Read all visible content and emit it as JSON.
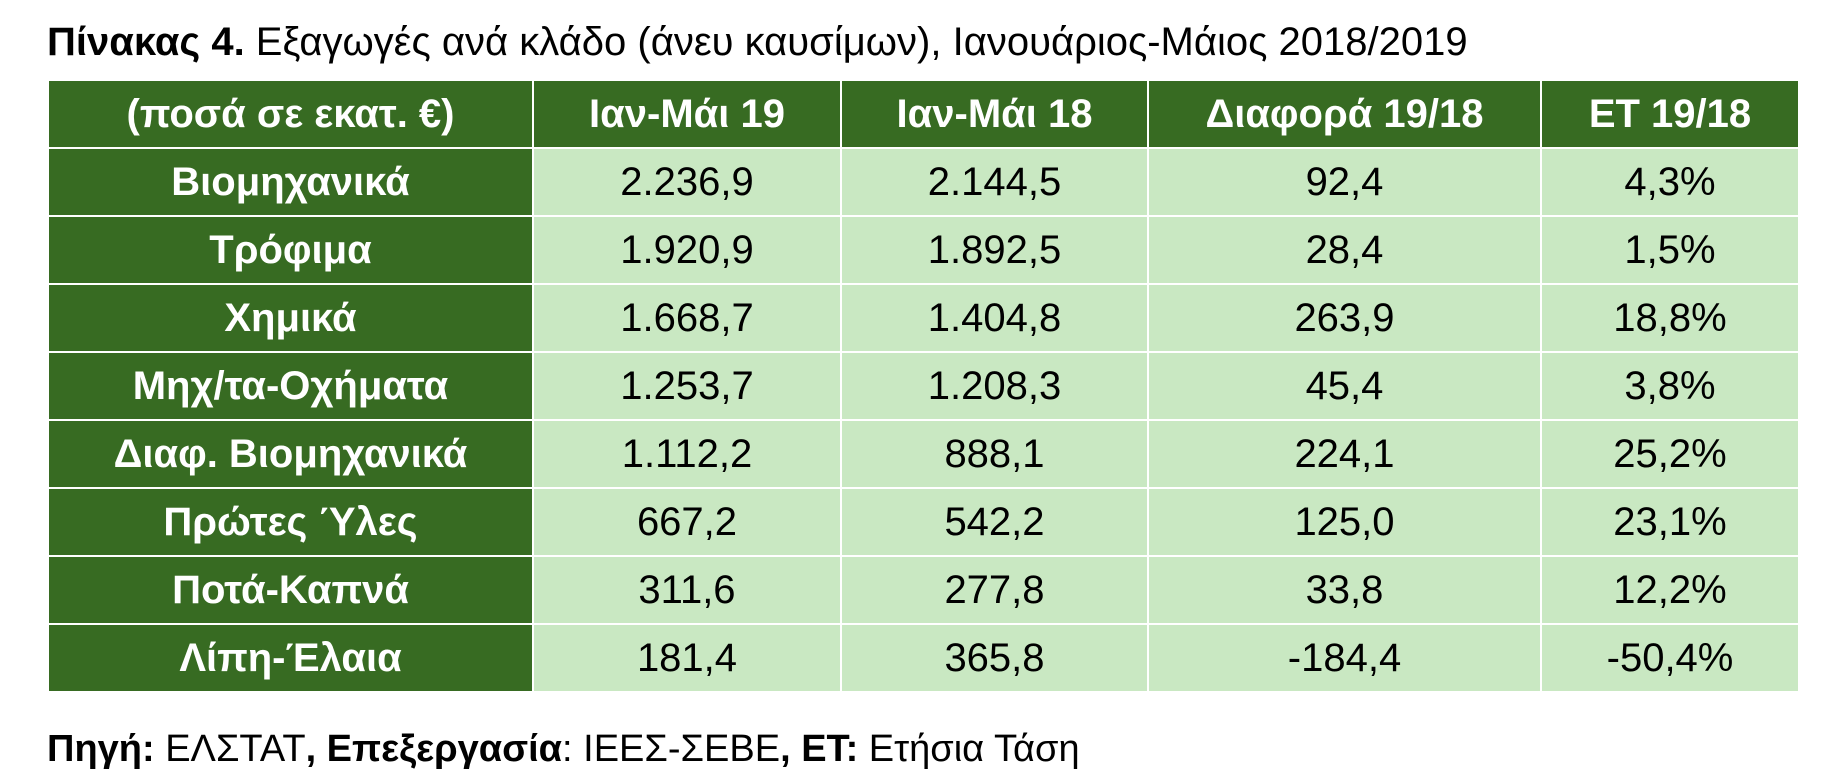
{
  "title": {
    "label": "Πίνακας 4.",
    "text": " Εξαγωγές ανά κλάδο (άνευ καυσίμων), Ιανουάριος-Μάιος 2018/2019"
  },
  "table": {
    "header": [
      "(ποσά σε εκατ. €)",
      "Ιαν-Μάι 19",
      "Ιαν-Μάι 18",
      "Διαφορά 19/18",
      "ΕΤ 19/18"
    ],
    "rows": [
      [
        "Βιομηχανικά",
        "2.236,9",
        "2.144,5",
        "92,4",
        "4,3%"
      ],
      [
        "Τρόφιμα",
        "1.920,9",
        "1.892,5",
        "28,4",
        "1,5%"
      ],
      [
        "Χημικά",
        "1.668,7",
        "1.404,8",
        "263,9",
        "18,8%"
      ],
      [
        "Μηχ/τα-Οχήματα",
        "1.253,7",
        "1.208,3",
        "45,4",
        "3,8%"
      ],
      [
        "Διαφ. Βιομηχανικά",
        "1.112,2",
        "888,1",
        "224,1",
        "25,2%"
      ],
      [
        "Πρώτες Ύλες",
        "667,2",
        "542,2",
        "125,0",
        "23,1%"
      ],
      [
        "Ποτά-Καπνά",
        "311,6",
        "277,8",
        "33,8",
        "12,2%"
      ],
      [
        "Λίπη-Έλαια",
        "181,4",
        "365,8",
        "-184,4",
        "-50,4%"
      ]
    ]
  },
  "footer": [
    {
      "text": "Πηγή:",
      "bold": true
    },
    {
      "text": " ΕΛΣΤΑΤ",
      "bold": false
    },
    {
      "text": ", Επεξεργασία",
      "bold": true
    },
    {
      "text": ": ΙΕΕΣ-ΣΕΒΕ",
      "bold": false
    },
    {
      "text": ", ΕΤ:",
      "bold": true
    },
    {
      "text": " Ετήσια Τάση",
      "bold": false
    }
  ]
}
